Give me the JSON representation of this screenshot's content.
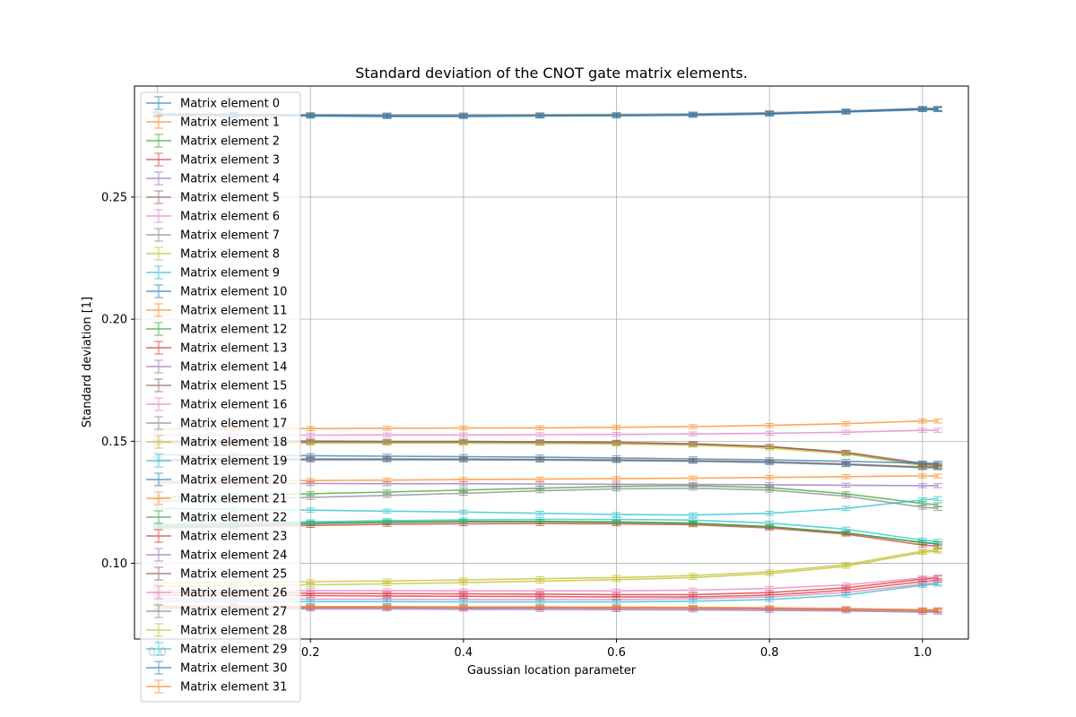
{
  "chart_data": {
    "type": "line",
    "title": "Standard deviation of the CNOT gate matrix elements.",
    "xlabel": "Gaussian location parameter",
    "ylabel": "Standard deviation [1]",
    "xlim": [
      -0.03,
      1.06
    ],
    "ylim": [
      0.069,
      0.2955
    ],
    "xticks": [
      {
        "value": 0.0,
        "label": "0.0"
      },
      {
        "value": 0.2,
        "label": "0.2"
      },
      {
        "value": 0.4,
        "label": "0.4"
      },
      {
        "value": 0.6,
        "label": "0.6"
      },
      {
        "value": 0.8,
        "label": "0.8"
      },
      {
        "value": 1.0,
        "label": "1.0"
      }
    ],
    "yticks": [
      {
        "value": 0.1,
        "label": "0.10"
      },
      {
        "value": 0.15,
        "label": "0.15"
      },
      {
        "value": 0.2,
        "label": "0.20"
      },
      {
        "value": 0.25,
        "label": "0.25"
      }
    ],
    "grid": true,
    "legend_position": "top-left",
    "x": [
      0.0,
      0.1,
      0.2,
      0.3,
      0.4,
      0.5,
      0.6,
      0.7,
      0.8,
      0.9,
      1.0,
      1.02
    ],
    "series": [
      {
        "name": "Matrix element 0",
        "color": "#1f77b4",
        "values": [
          0.2835,
          0.2833,
          0.2832,
          0.283,
          0.283,
          0.2832,
          0.2833,
          0.2835,
          0.284,
          0.2848,
          0.2858,
          0.2858
        ]
      },
      {
        "name": "Matrix element 1",
        "color": "#ff7f0e",
        "values": [
          0.082,
          0.0819,
          0.0818,
          0.0818,
          0.0817,
          0.0817,
          0.0816,
          0.0815,
          0.0813,
          0.081,
          0.0805,
          0.0805
        ]
      },
      {
        "name": "Matrix element 2",
        "color": "#2ca02c",
        "values": [
          0.127,
          0.1278,
          0.1285,
          0.1292,
          0.13,
          0.1308,
          0.1315,
          0.1318,
          0.131,
          0.1285,
          0.1245,
          0.124
        ]
      },
      {
        "name": "Matrix element 3",
        "color": "#d62728",
        "values": [
          0.087,
          0.087,
          0.0868,
          0.0866,
          0.0865,
          0.0864,
          0.0862,
          0.0862,
          0.087,
          0.089,
          0.0925,
          0.093
        ]
      },
      {
        "name": "Matrix element 4",
        "color": "#9467bd",
        "values": [
          0.133,
          0.1328,
          0.1327,
          0.1326,
          0.1326,
          0.1325,
          0.1324,
          0.1323,
          0.1322,
          0.132,
          0.1318,
          0.1318
        ]
      },
      {
        "name": "Matrix element 5",
        "color": "#8c564b",
        "values": [
          0.15,
          0.1501,
          0.1501,
          0.15,
          0.15,
          0.1498,
          0.1496,
          0.149,
          0.1478,
          0.1452,
          0.1405,
          0.14
        ]
      },
      {
        "name": "Matrix element 6",
        "color": "#e377c2",
        "values": [
          0.1525,
          0.1525,
          0.1525,
          0.1526,
          0.1526,
          0.1527,
          0.1528,
          0.153,
          0.1533,
          0.1537,
          0.1545,
          0.1545
        ]
      },
      {
        "name": "Matrix element 7",
        "color": "#7f7f7f",
        "values": [
          0.284,
          0.2838,
          0.2836,
          0.2834,
          0.2834,
          0.2835,
          0.2836,
          0.2838,
          0.2843,
          0.2851,
          0.2862,
          0.2862
        ]
      },
      {
        "name": "Matrix element 8",
        "color": "#bcbd22",
        "values": [
          0.092,
          0.0922,
          0.0925,
          0.0928,
          0.0932,
          0.0937,
          0.0942,
          0.095,
          0.0965,
          0.0995,
          0.105,
          0.1055
        ]
      },
      {
        "name": "Matrix element 9",
        "color": "#17becf",
        "values": [
          0.1225,
          0.1222,
          0.1218,
          0.1214,
          0.121,
          0.1205,
          0.12,
          0.1198,
          0.1205,
          0.1225,
          0.126,
          0.1265
        ]
      },
      {
        "name": "Matrix element 10",
        "color": "#1f77b4",
        "values": [
          0.142,
          0.1422,
          0.1424,
          0.1424,
          0.1424,
          0.1423,
          0.1421,
          0.1418,
          0.1413,
          0.1404,
          0.1392,
          0.1392
        ]
      },
      {
        "name": "Matrix element 11",
        "color": "#ff7f0e",
        "values": [
          0.155,
          0.1551,
          0.1552,
          0.1553,
          0.1554,
          0.1555,
          0.1557,
          0.156,
          0.1565,
          0.1572,
          0.1583,
          0.1583
        ]
      },
      {
        "name": "Matrix element 12",
        "color": "#2ca02c",
        "values": [
          0.1155,
          0.116,
          0.1165,
          0.117,
          0.1172,
          0.1172,
          0.117,
          0.1165,
          0.115,
          0.1125,
          0.1085,
          0.108
        ]
      },
      {
        "name": "Matrix element 13",
        "color": "#d62728",
        "values": [
          0.1145,
          0.115,
          0.1155,
          0.116,
          0.1162,
          0.1163,
          0.1162,
          0.1158,
          0.1145,
          0.112,
          0.1075,
          0.107
        ]
      },
      {
        "name": "Matrix element 14",
        "color": "#9467bd",
        "values": [
          0.0815,
          0.0814,
          0.0813,
          0.0813,
          0.0812,
          0.0811,
          0.081,
          0.0809,
          0.0807,
          0.0805,
          0.08,
          0.08
        ]
      },
      {
        "name": "Matrix element 15",
        "color": "#8c564b",
        "values": [
          0.1495,
          0.1496,
          0.1497,
          0.1496,
          0.1496,
          0.1495,
          0.1493,
          0.1488,
          0.1478,
          0.1455,
          0.141,
          0.1405
        ]
      },
      {
        "name": "Matrix element 16",
        "color": "#e377c2",
        "values": [
          0.0855,
          0.0854,
          0.0853,
          0.0853,
          0.0852,
          0.0852,
          0.0852,
          0.0855,
          0.0862,
          0.088,
          0.0915,
          0.092
        ]
      },
      {
        "name": "Matrix element 17",
        "color": "#7f7f7f",
        "values": [
          0.1255,
          0.1262,
          0.127,
          0.1278,
          0.1287,
          0.1297,
          0.1305,
          0.1308,
          0.13,
          0.1275,
          0.123,
          0.1225
        ]
      },
      {
        "name": "Matrix element 18",
        "color": "#bcbd22",
        "values": [
          0.149,
          0.1491,
          0.1492,
          0.1492,
          0.1492,
          0.1491,
          0.1489,
          0.1484,
          0.1472,
          0.1448,
          0.14,
          0.1395
        ]
      },
      {
        "name": "Matrix element 19",
        "color": "#17becf",
        "values": [
          0.0845,
          0.0844,
          0.0843,
          0.0843,
          0.0842,
          0.0842,
          0.0842,
          0.0845,
          0.0852,
          0.087,
          0.091,
          0.0915
        ]
      },
      {
        "name": "Matrix element 20",
        "color": "#1f77b4",
        "values": [
          0.1445,
          0.1443,
          0.1441,
          0.1439,
          0.1437,
          0.1435,
          0.1432,
          0.1428,
          0.1424,
          0.1418,
          0.141,
          0.141
        ]
      },
      {
        "name": "Matrix element 21",
        "color": "#ff7f0e",
        "values": [
          0.1335,
          0.1337,
          0.1339,
          0.1341,
          0.1343,
          0.1345,
          0.1347,
          0.1349,
          0.1352,
          0.1355,
          0.1358,
          0.1358
        ]
      },
      {
        "name": "Matrix element 22",
        "color": "#2ca02c",
        "values": [
          0.115,
          0.1155,
          0.1162,
          0.1167,
          0.117,
          0.117,
          0.1168,
          0.1163,
          0.115,
          0.1125,
          0.1085,
          0.108
        ]
      },
      {
        "name": "Matrix element 23",
        "color": "#d62728",
        "values": [
          0.088,
          0.088,
          0.0878,
          0.0876,
          0.0875,
          0.0874,
          0.0872,
          0.0872,
          0.088,
          0.09,
          0.0935,
          0.094
        ]
      },
      {
        "name": "Matrix element 24",
        "color": "#9467bd",
        "values": [
          0.0822,
          0.0821,
          0.082,
          0.082,
          0.0819,
          0.0818,
          0.0818,
          0.0817,
          0.0815,
          0.0812,
          0.0808,
          0.0808
        ]
      },
      {
        "name": "Matrix element 25",
        "color": "#8c564b",
        "values": [
          0.1425,
          0.1427,
          0.1428,
          0.1428,
          0.1427,
          0.1426,
          0.1424,
          0.1421,
          0.1416,
          0.1407,
          0.1395,
          0.1395
        ]
      },
      {
        "name": "Matrix element 26",
        "color": "#e377c2",
        "values": [
          0.089,
          0.0889,
          0.0888,
          0.0888,
          0.0887,
          0.0887,
          0.0887,
          0.089,
          0.0897,
          0.0912,
          0.094,
          0.0945
        ]
      },
      {
        "name": "Matrix element 27",
        "color": "#7f7f7f",
        "values": [
          0.2842,
          0.284,
          0.2838,
          0.2837,
          0.2837,
          0.2838,
          0.2839,
          0.2841,
          0.2846,
          0.2853,
          0.2864,
          0.2864
        ]
      },
      {
        "name": "Matrix element 28",
        "color": "#bcbd22",
        "values": [
          0.0905,
          0.0908,
          0.0912,
          0.0916,
          0.0921,
          0.0927,
          0.0933,
          0.0942,
          0.0958,
          0.0988,
          0.1045,
          0.105
        ]
      },
      {
        "name": "Matrix element 29",
        "color": "#17becf",
        "values": [
          0.116,
          0.1165,
          0.117,
          0.1175,
          0.1178,
          0.118,
          0.118,
          0.1177,
          0.1165,
          0.114,
          0.1095,
          0.109
        ]
      },
      {
        "name": "Matrix element 30",
        "color": "#1f77b4",
        "values": [
          0.2838,
          0.2836,
          0.2834,
          0.2832,
          0.2832,
          0.2833,
          0.2834,
          0.2837,
          0.2842,
          0.285,
          0.286,
          0.286
        ]
      },
      {
        "name": "Matrix element 31",
        "color": "#ff7f0e",
        "values": [
          0.0825,
          0.0824,
          0.0823,
          0.0823,
          0.0822,
          0.0822,
          0.0821,
          0.082,
          0.0818,
          0.0815,
          0.081,
          0.081
        ]
      }
    ]
  }
}
